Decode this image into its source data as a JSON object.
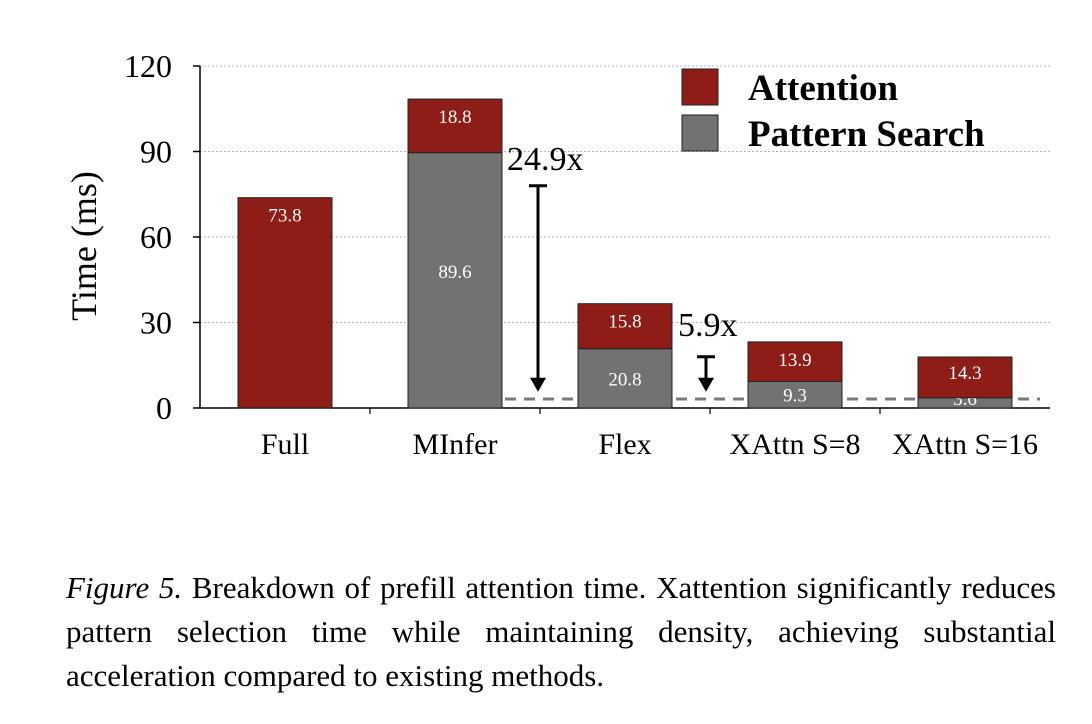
{
  "chart_data": {
    "type": "bar",
    "stacked": true,
    "categories": [
      "Full",
      "MInfer",
      "Flex",
      "XAttn S=8",
      "XAttn S=16"
    ],
    "series": [
      {
        "name": "Pattern Search",
        "color": "#717371",
        "values": [
          0,
          89.6,
          20.8,
          9.3,
          3.6
        ]
      },
      {
        "name": "Attention",
        "color": "#8e1d17",
        "values": [
          73.8,
          18.8,
          15.8,
          13.9,
          14.3
        ]
      }
    ],
    "ylabel": "Time (ms)",
    "xlabel": "",
    "ylim": [
      0,
      120
    ],
    "yticks": [
      0,
      30,
      60,
      90,
      120
    ],
    "grid": "horizontal dotted",
    "legend": "top-right",
    "annotations": [
      {
        "text": "24.9x",
        "from": 78,
        "to": 3.6,
        "between": "MInfer and Flex"
      },
      {
        "text": "5.9x",
        "from": 18,
        "to": 3.6,
        "between": "Flex and XAttn S=8"
      }
    ],
    "reference_line": {
      "value": 3.6,
      "style": "dashed"
    }
  },
  "caption": {
    "label": "Figure 5.",
    "text": "Breakdown of prefill attention time. Xattention significantly reduces pattern selection time while maintaining density, achieving substantial acceleration compared to existing methods."
  }
}
